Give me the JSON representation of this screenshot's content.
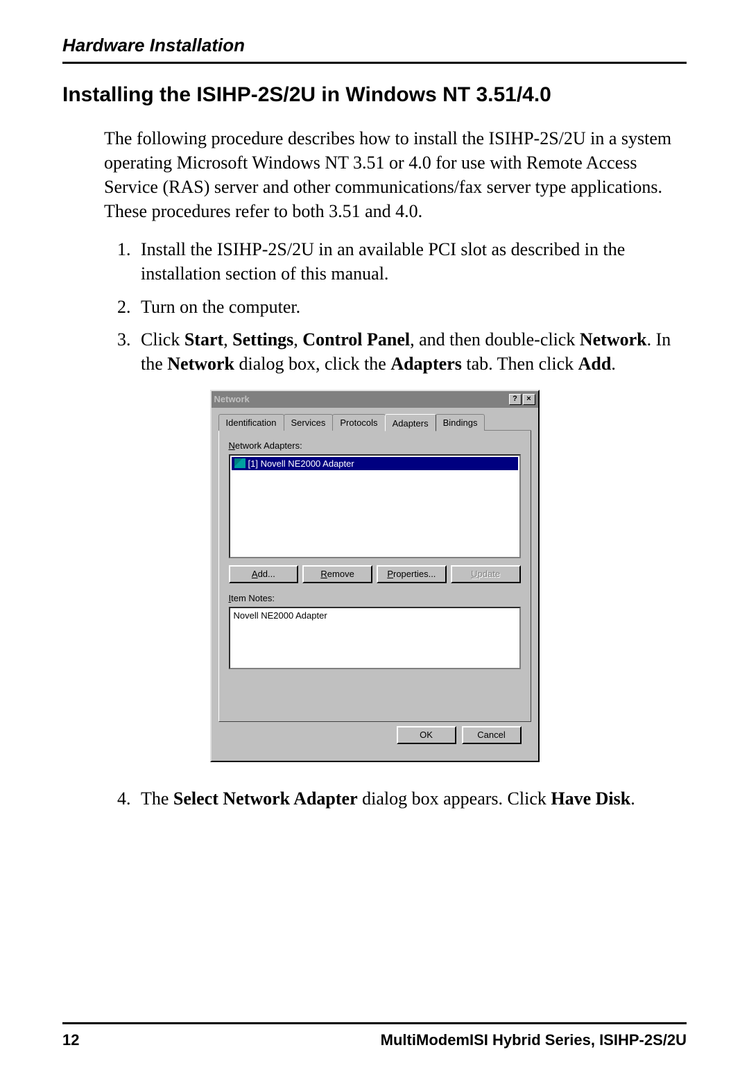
{
  "page": {
    "header_section": "Hardware Installation",
    "main_heading": "Installing the ISIHP-2S/2U in Windows NT 3.51/4.0",
    "intro": "The following procedure describes how to install the ISIHP-2S/2U in a system operating Microsoft Windows NT 3.51 or 4.0 for use with Remote Access Service (RAS) server and other communications/fax server type applications. These procedures refer to both 3.51 and 4.0.",
    "step1": "Install the ISIHP-2S/2U in an available PCI slot as described in the installation section of this manual.",
    "step2": "Turn on the computer.",
    "step3_pre": "Click ",
    "step3_b1": "Start",
    "step3_c1": ", ",
    "step3_b2": "Settings",
    "step3_c2": ", ",
    "step3_b3": "Control Panel",
    "step3_mid": ", and then double-click ",
    "step3_b4": "Network",
    "step3_mid2": ". In the ",
    "step3_b5": "Network",
    "step3_mid3": " dialog box, click the ",
    "step3_b6": "Adapters",
    "step3_mid4": " tab. Then click ",
    "step3_b7": "Add",
    "step3_end": ".",
    "step4_pre": "The ",
    "step4_b1": "Select Network Adapter",
    "step4_mid": " dialog box appears. Click ",
    "step4_b2": "Have Disk",
    "step4_end": ".",
    "footer_page": "12",
    "footer_title": "MultiModemISI Hybrid Series, ISIHP-2S/2U"
  },
  "dialog": {
    "title": "Network",
    "help_btn": "?",
    "close_btn": "×",
    "tabs": {
      "identification": "Identification",
      "services": "Services",
      "protocols": "Protocols",
      "adapters": "Adapters",
      "bindings": "Bindings"
    },
    "adapters_label_ul": "N",
    "adapters_label_rest": "etwork Adapters:",
    "list_item": "[1] Novell NE2000 Adapter",
    "btn_add_ul": "A",
    "btn_add_rest": "dd...",
    "btn_remove_ul": "R",
    "btn_remove_rest": "emove",
    "btn_props_ul": "P",
    "btn_props_rest": "roperties...",
    "btn_update_ul": "U",
    "btn_update_rest": "pdate",
    "notes_label_ul": "I",
    "notes_label_rest": "tem Notes:",
    "notes_text": "Novell NE2000 Adapter",
    "ok": "OK",
    "cancel": "Cancel"
  },
  "colors": {
    "dialog_bg": "#c0c0c0",
    "selection_bg": "#000080",
    "text": "#000000"
  }
}
